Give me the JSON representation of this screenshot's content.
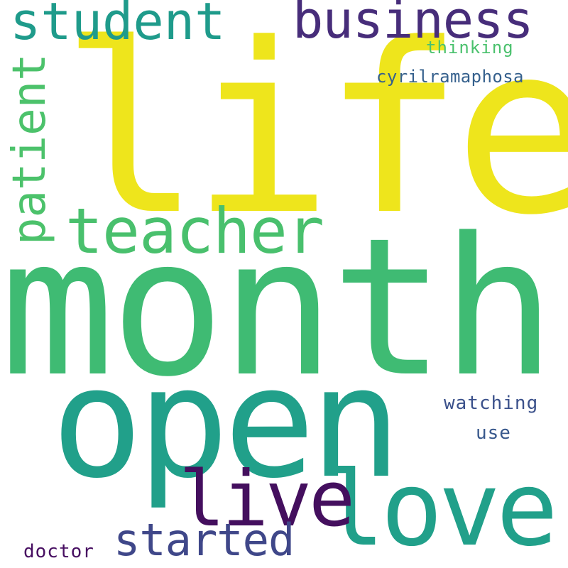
{
  "words": [
    {
      "id": "life",
      "text": "life",
      "color": "#eee51c",
      "orientation": "horizontal"
    },
    {
      "id": "month",
      "text": "month",
      "color": "#3fbb73",
      "orientation": "horizontal"
    },
    {
      "id": "open",
      "text": "open",
      "color": "#21a08a",
      "orientation": "horizontal"
    },
    {
      "id": "love",
      "text": "love",
      "color": "#21a08a",
      "orientation": "horizontal"
    },
    {
      "id": "live",
      "text": "live",
      "color": "#440f5e",
      "orientation": "horizontal"
    },
    {
      "id": "teacher",
      "text": "teacher",
      "color": "#49c06d",
      "orientation": "horizontal"
    },
    {
      "id": "student",
      "text": "student",
      "color": "#1f9b8b",
      "orientation": "horizontal"
    },
    {
      "id": "business",
      "text": "business",
      "color": "#472d7a",
      "orientation": "horizontal"
    },
    {
      "id": "patient",
      "text": "patient",
      "color": "#4cc26b",
      "orientation": "vertical"
    },
    {
      "id": "started",
      "text": "started",
      "color": "#3f4789",
      "orientation": "horizontal"
    },
    {
      "id": "cyrilramaphosa",
      "text": "cyrilramaphosa",
      "color": "#35608d",
      "orientation": "horizontal"
    },
    {
      "id": "thinking",
      "text": "thinking",
      "color": "#4ac16d",
      "orientation": "horizontal"
    },
    {
      "id": "watching",
      "text": "watching",
      "color": "#3b518b",
      "orientation": "horizontal"
    },
    {
      "id": "use",
      "text": "use",
      "color": "#38588c",
      "orientation": "horizontal"
    },
    {
      "id": "doctor",
      "text": "doctor",
      "color": "#470e61",
      "orientation": "horizontal"
    }
  ]
}
